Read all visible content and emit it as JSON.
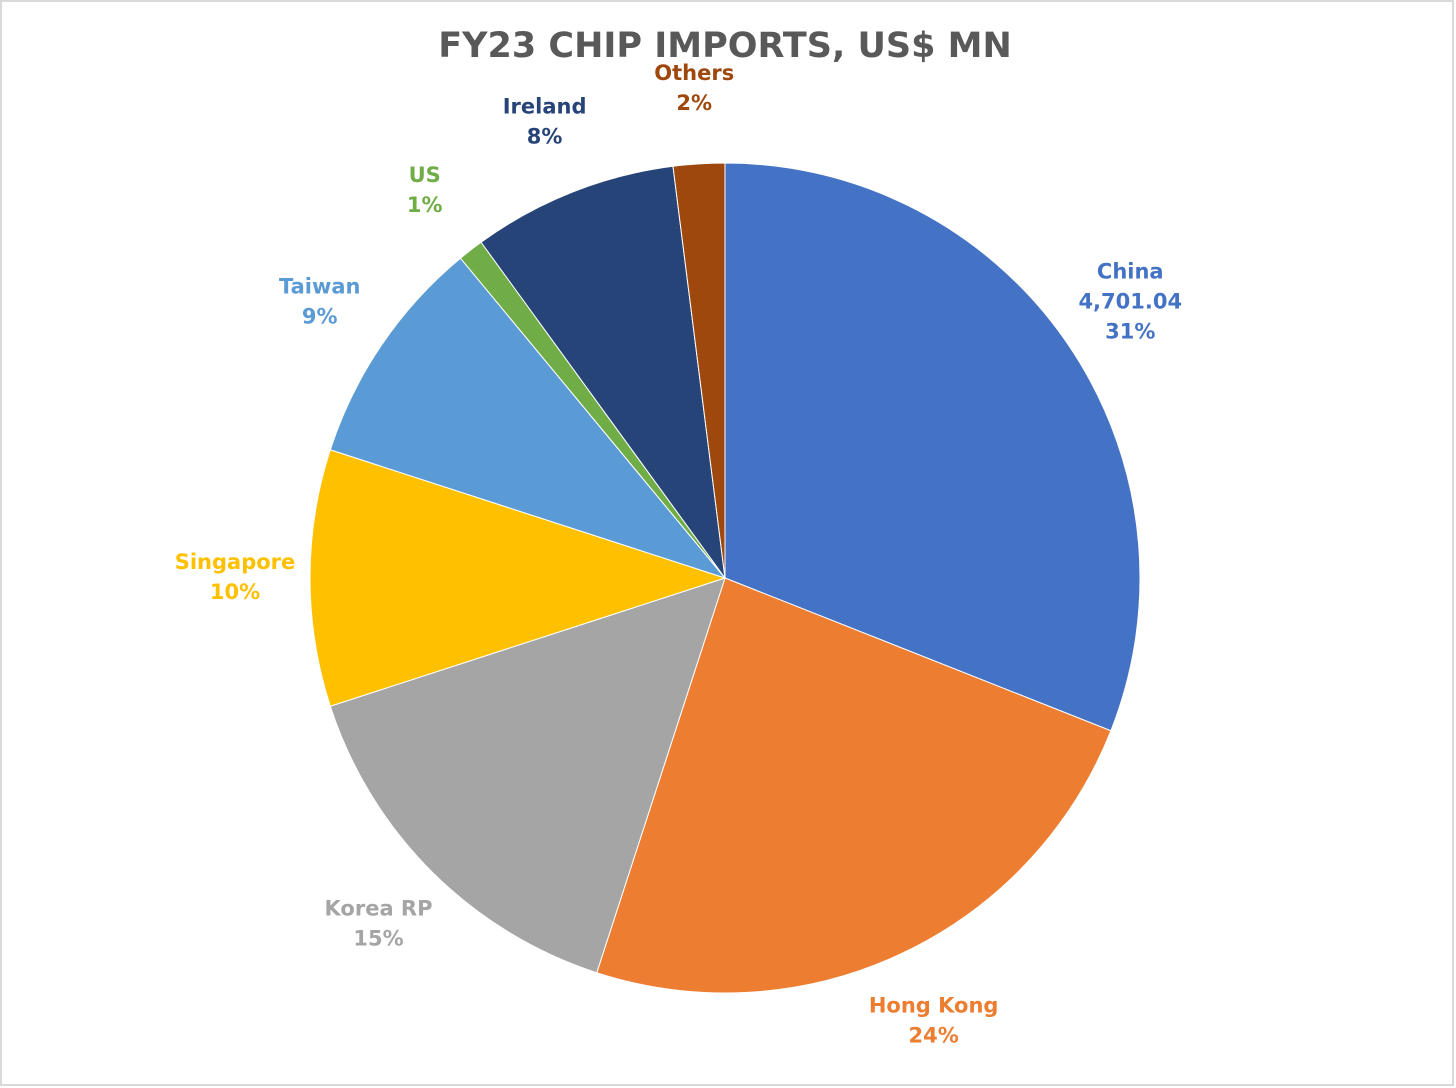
{
  "chart_data": {
    "type": "pie",
    "title": "FY23 CHIP IMPORTS, US$ MN",
    "categories": [
      "China",
      "Hong Kong",
      "Korea RP",
      "Singapore",
      "Taiwan",
      "US",
      "Ireland",
      "Others"
    ],
    "values": [
      31,
      24,
      15,
      10,
      9,
      1,
      8,
      2
    ],
    "value_labels": [
      "31%",
      "24%",
      "15%",
      "10%",
      "9%",
      "1%",
      "8%",
      "2%"
    ],
    "amounts": [
      {
        "value": 4701.04,
        "label": "4,701.04"
      },
      null,
      null,
      null,
      null,
      null,
      null,
      null
    ],
    "colors": [
      "#4472c4",
      "#ed7d31",
      "#a5a5a5",
      "#ffc000",
      "#5b9bd5",
      "#70ad47",
      "#264478",
      "#9e480e"
    ]
  }
}
